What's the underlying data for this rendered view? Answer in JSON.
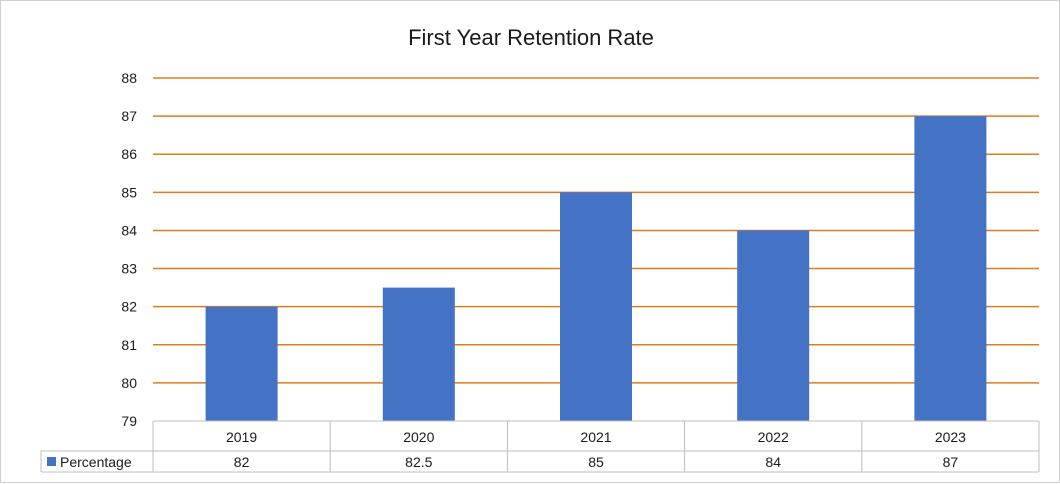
{
  "chart_data": {
    "type": "bar",
    "title": "First Year Retention Rate",
    "categories": [
      "2019",
      "2020",
      "2021",
      "2022",
      "2023"
    ],
    "series": [
      {
        "name": "Percentage",
        "values": [
          82,
          82.5,
          85,
          84,
          87
        ]
      }
    ],
    "value_labels": [
      "82",
      "82.5",
      "85",
      "84",
      "87"
    ],
    "yticks": [
      "79",
      "80",
      "81",
      "82",
      "83",
      "84",
      "85",
      "86",
      "87",
      "88"
    ],
    "ylim": [
      79,
      88
    ],
    "xlabel": "",
    "ylabel": "",
    "grid": true,
    "legend": "data-table",
    "colors": {
      "bar": "#4472C4",
      "grid": "#E07B1F",
      "table_border": "#BFBFBF"
    }
  }
}
